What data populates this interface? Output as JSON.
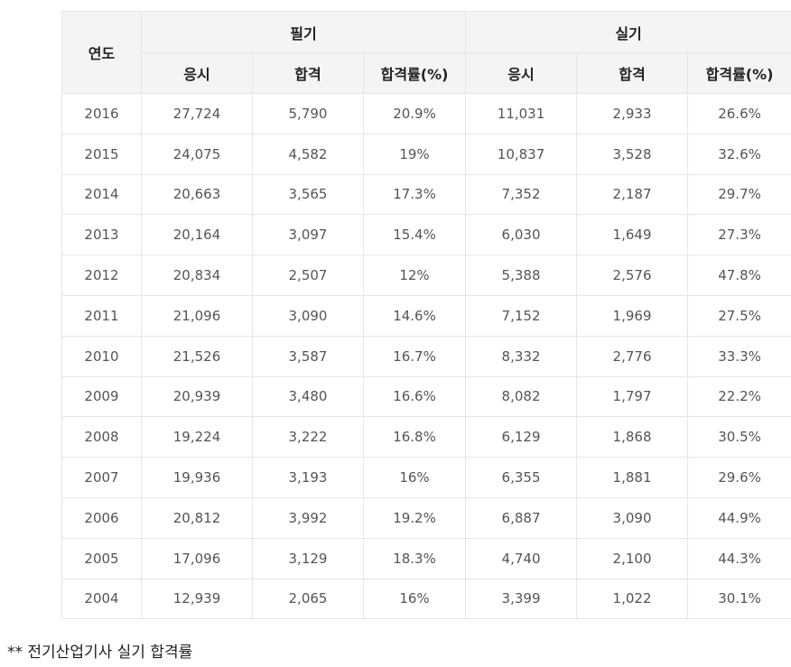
{
  "table": {
    "year_header": "연도",
    "group_headers": [
      "필기",
      "실기"
    ],
    "sub_headers": [
      "응시",
      "합격",
      "합격률(%)",
      "응시",
      "합격",
      "합격률(%)"
    ],
    "rows": [
      [
        "2016",
        "27,724",
        "5,790",
        "20.9%",
        "11,031",
        "2,933",
        "26.6%"
      ],
      [
        "2015",
        "24,075",
        "4,582",
        "19%",
        "10,837",
        "3,528",
        "32.6%"
      ],
      [
        "2014",
        "20,663",
        "3,565",
        "17.3%",
        "7,352",
        "2,187",
        "29.7%"
      ],
      [
        "2013",
        "20,164",
        "3,097",
        "15.4%",
        "6,030",
        "1,649",
        "27.3%"
      ],
      [
        "2012",
        "20,834",
        "2,507",
        "12%",
        "5,388",
        "2,576",
        "47.8%"
      ],
      [
        "2011",
        "21,096",
        "3,090",
        "14.6%",
        "7,152",
        "1,969",
        "27.5%"
      ],
      [
        "2010",
        "21,526",
        "3,587",
        "16.7%",
        "8,332",
        "2,776",
        "33.3%"
      ],
      [
        "2009",
        "20,939",
        "3,480",
        "16.6%",
        "8,082",
        "1,797",
        "22.2%"
      ],
      [
        "2008",
        "19,224",
        "3,222",
        "16.8%",
        "6,129",
        "1,868",
        "30.5%"
      ],
      [
        "2007",
        "19,936",
        "3,193",
        "16%",
        "6,355",
        "1,881",
        "29.6%"
      ],
      [
        "2006",
        "20,812",
        "3,992",
        "19.2%",
        "6,887",
        "3,090",
        "44.9%"
      ],
      [
        "2005",
        "17,096",
        "3,129",
        "18.3%",
        "4,740",
        "2,100",
        "44.3%"
      ],
      [
        "2004",
        "12,939",
        "2,065",
        "16%",
        "3,399",
        "1,022",
        "30.1%"
      ]
    ]
  },
  "note": "** 전기산업기사 실기 합격률"
}
